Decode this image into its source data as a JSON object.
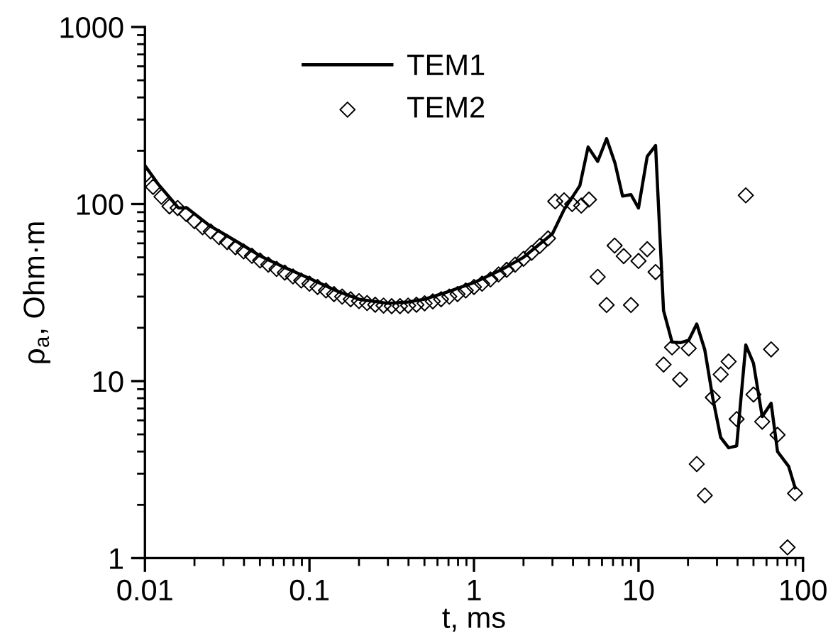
{
  "chart_data": {
    "type": "line",
    "xlabel": "t, ms",
    "ylabel": "ρ$_{a}$, Ohm·m",
    "log": "xy",
    "xlim": [
      0.01,
      100
    ],
    "ylim": [
      1,
      1000
    ],
    "xticks": [
      0.01,
      0.1,
      1,
      10,
      100
    ],
    "yticks": [
      1,
      10,
      100,
      1000
    ],
    "grid": false,
    "legend": "top",
    "tick_labels": true,
    "series": [
      {
        "name": "TEM1",
        "color": "#000000",
        "marker": "none",
        "line_style": "solid",
        "x": [
          0.01,
          0.012,
          0.014,
          0.016,
          0.018,
          0.02,
          0.025,
          0.03,
          0.04,
          0.05,
          0.07,
          0.1,
          0.15,
          0.2,
          0.3,
          0.4,
          0.5,
          0.7,
          1,
          1.5,
          2,
          3,
          3.53,
          4.4,
          4.94,
          5.65,
          6.4,
          7.2,
          8.0,
          9.0,
          10,
          11.3,
          12.7,
          14.2,
          16,
          18.1,
          20.2,
          22.6,
          25.3,
          28.3,
          31.6,
          35.3,
          39.5,
          44.9,
          50,
          56.5,
          64,
          70,
          81.8,
          89.5
        ],
        "values": [
          165,
          130,
          110,
          95,
          95,
          88,
          75,
          68,
          58,
          51,
          44,
          38,
          32,
          29,
          27.5,
          28,
          29,
          32,
          36,
          43,
          50,
          68,
          93,
          127,
          210,
          174,
          234,
          170,
          111,
          113,
          95,
          186,
          214,
          25,
          16.6,
          16.5,
          17,
          21,
          15,
          8,
          4.8,
          4.2,
          4.3,
          16,
          12.6,
          6.3,
          7.5,
          4,
          3.3,
          2.5
        ]
      },
      {
        "name": "TEM2",
        "type": "scatter",
        "color": "#000000",
        "marker": "diamond",
        "x": [
          0.01,
          0.0112,
          0.0126,
          0.0141,
          0.0158,
          0.0178,
          0.02,
          0.0224,
          0.0251,
          0.0282,
          0.0316,
          0.0355,
          0.0398,
          0.0447,
          0.0501,
          0.0562,
          0.0631,
          0.0708,
          0.0794,
          0.0891,
          0.1,
          0.112,
          0.126,
          0.141,
          0.158,
          0.178,
          0.2,
          0.224,
          0.251,
          0.282,
          0.316,
          0.355,
          0.398,
          0.447,
          0.501,
          0.562,
          0.631,
          0.708,
          0.794,
          0.891,
          1,
          1.12,
          1.26,
          1.41,
          1.58,
          1.78,
          2,
          2.24,
          2.51,
          2.82,
          3.12,
          3.53,
          3.95,
          4.49,
          5.0,
          5.65,
          6.4,
          7.16,
          8.13,
          9.0,
          10,
          11.3,
          12.7,
          14.2,
          16,
          17.9,
          20.2,
          22.6,
          25.3,
          28.3,
          31.6,
          35.3,
          39.5,
          44.9,
          50,
          56.5,
          64,
          70,
          80.5,
          89.5
        ],
        "values": [
          145,
          125,
          110,
          97,
          95,
          88,
          80,
          74,
          70,
          65,
          61,
          57,
          54,
          51,
          48,
          45.5,
          43,
          41,
          39,
          37,
          35.5,
          34,
          32.5,
          31,
          30,
          29,
          28.3,
          27.6,
          27,
          26.7,
          26.5,
          26.5,
          26.7,
          27,
          27.5,
          28.2,
          29,
          30,
          31,
          32.5,
          34,
          35.5,
          37.5,
          40,
          42.5,
          45.5,
          49,
          53,
          58,
          64,
          103.5,
          105,
          100,
          98,
          106,
          38.8,
          26.9,
          58.3,
          50.8,
          26.9,
          47.7,
          55.6,
          41.3,
          12.4,
          15.5,
          10.2,
          15.3,
          3.4,
          2.26,
          8.08,
          10.9,
          12.9,
          6.1,
          112,
          8.4,
          5.9,
          15.1,
          4.97,
          1.15,
          2.32
        ]
      }
    ]
  }
}
